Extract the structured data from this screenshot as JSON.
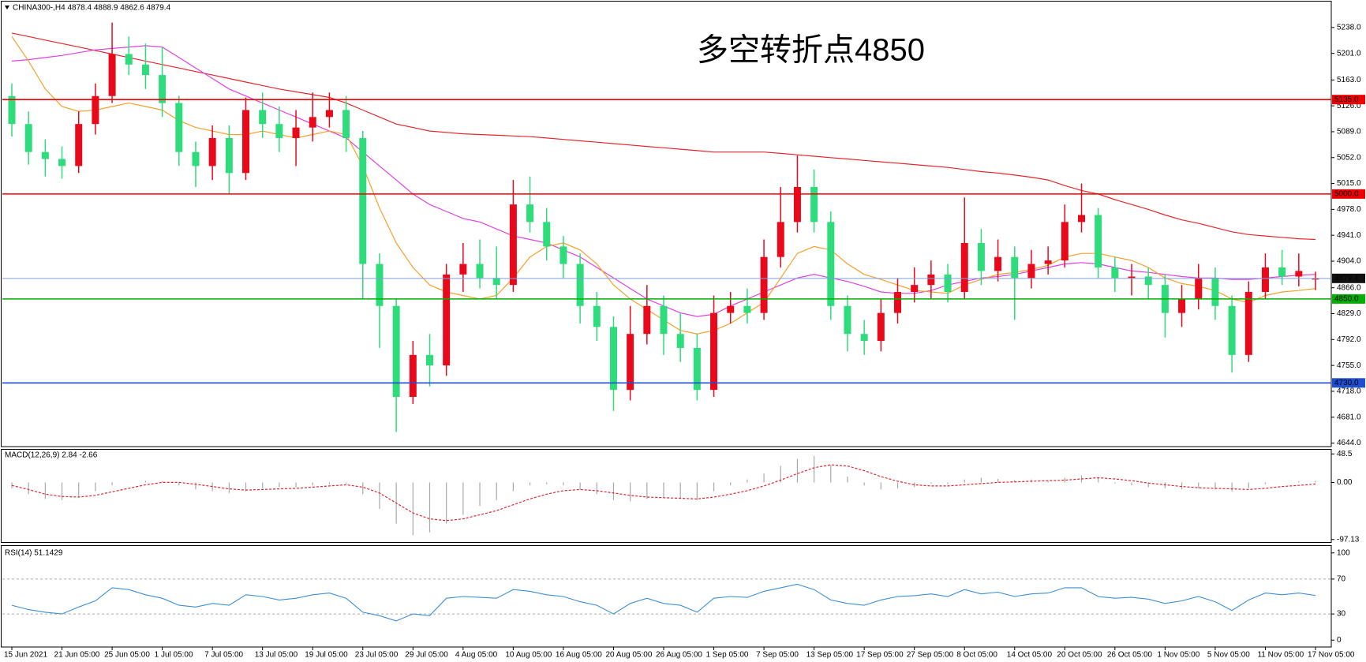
{
  "chart_data": {
    "type": "candlestick",
    "header": "CHINA300-,H4  4878.4 4888.9 4862.6 4879.4",
    "annotation": "多空转折点4850",
    "annotation_color": "#e8222b",
    "up_color": "#e8091b",
    "down_color": "#2edc7c",
    "categories": [
      "15 Jun 2021",
      null,
      null,
      "21 Jun 05:00",
      null,
      null,
      "25 Jun 05:00",
      null,
      null,
      "1 Jul 05:00",
      null,
      null,
      "7 Jul 05:00",
      null,
      null,
      "13 Jul 05:00",
      null,
      null,
      "19 Jul 05:00",
      null,
      null,
      "23 Jul 05:00",
      null,
      null,
      "29 Jul 05:00",
      null,
      null,
      "4 Aug 05:00",
      null,
      null,
      "10 Aug 05:00",
      null,
      null,
      "16 Aug 05:00",
      null,
      null,
      "20 Aug 05:00",
      null,
      null,
      "26 Aug 05:00",
      null,
      null,
      "1 Sep 05:00",
      null,
      null,
      "7 Sep 05:00",
      null,
      null,
      "13 Sep 05:00",
      null,
      null,
      "17 Sep 05:00",
      null,
      null,
      "27 Sep 05:00",
      null,
      null,
      "8 Oct 05:00",
      null,
      null,
      "14 Oct 05:00",
      null,
      null,
      "20 Oct 05:00",
      null,
      null,
      "26 Oct 05:00",
      null,
      null,
      "1 Nov 05:00",
      null,
      null,
      "5 Nov 05:00",
      null,
      null,
      "11 Nov 05:00",
      null,
      null,
      "17 Nov 05:00"
    ],
    "open": [
      5140,
      5100,
      5060,
      5050,
      5040,
      5100,
      5140,
      5200,
      5185,
      5170,
      5130,
      5060,
      5040,
      5080,
      5030,
      5120,
      5100,
      5080,
      5095,
      5110,
      5120,
      5080,
      4900,
      4840,
      4710,
      4770,
      4755,
      4885,
      4900,
      4880,
      4870,
      4985,
      4960,
      4925,
      4900,
      4840,
      4810,
      4720,
      4800,
      4840,
      4800,
      4780,
      4720,
      4830,
      4840,
      4830,
      4910,
      4960,
      5010,
      4960,
      4840,
      4800,
      4790,
      4830,
      4860,
      4870,
      4885,
      4860,
      4930,
      4890,
      4910,
      4880,
      4900,
      4905,
      4960,
      4970,
      4895,
      4880,
      4882,
      4870,
      4830,
      4850,
      4880,
      4840,
      4770,
      4860,
      4895,
      4882,
      4878.4
    ],
    "high": [
      5158,
      5118,
      5078,
      5068,
      5118,
      5158,
      5245,
      5225,
      5215,
      5210,
      5140,
      5075,
      5098,
      5098,
      5138,
      5145,
      5125,
      5120,
      5145,
      5145,
      5140,
      5090,
      4915,
      4850,
      4790,
      4800,
      4900,
      4930,
      4935,
      4925,
      5020,
      5025,
      4980,
      4940,
      4915,
      4860,
      4825,
      4840,
      4870,
      4855,
      4830,
      4800,
      4855,
      4860,
      4865,
      4935,
      5010,
      5055,
      5035,
      4975,
      4855,
      4820,
      4850,
      4880,
      4895,
      4905,
      4900,
      4995,
      4950,
      4935,
      4925,
      4920,
      4925,
      4985,
      5015,
      4980,
      4910,
      4900,
      4895,
      4885,
      4870,
      4900,
      4895,
      4855,
      4875,
      4915,
      4920,
      4915,
      4888.9
    ],
    "low": [
      5082,
      5042,
      5025,
      5022,
      5030,
      5085,
      5130,
      5170,
      5150,
      5110,
      5040,
      5010,
      5020,
      5000,
      5020,
      5080,
      5060,
      5040,
      5075,
      5095,
      5060,
      4850,
      4780,
      4660,
      4700,
      4725,
      4740,
      4860,
      4865,
      4850,
      4860,
      4945,
      4905,
      4880,
      4815,
      4790,
      4690,
      4705,
      4785,
      4770,
      4760,
      4705,
      4710,
      4815,
      4815,
      4820,
      4895,
      4945,
      4945,
      4820,
      4775,
      4770,
      4775,
      4815,
      4845,
      4850,
      4845,
      4850,
      4870,
      4875,
      4820,
      4865,
      4885,
      4895,
      4945,
      4880,
      4860,
      4855,
      4850,
      4795,
      4810,
      4835,
      4820,
      4745,
      4760,
      4850,
      4870,
      4868,
      4862.6
    ],
    "close": [
      5100,
      5060,
      5050,
      5040,
      5100,
      5140,
      5200,
      5185,
      5170,
      5130,
      5060,
      5040,
      5080,
      5030,
      5120,
      5100,
      5080,
      5095,
      5110,
      5120,
      5080,
      4900,
      4840,
      4710,
      4770,
      4755,
      4885,
      4900,
      4880,
      4870,
      4985,
      4960,
      4925,
      4900,
      4840,
      4810,
      4720,
      4800,
      4840,
      4800,
      4780,
      4720,
      4830,
      4840,
      4830,
      4910,
      4960,
      5010,
      4960,
      4840,
      4800,
      4790,
      4830,
      4860,
      4870,
      4885,
      4860,
      4930,
      4890,
      4910,
      4880,
      4900,
      4905,
      4960,
      4970,
      4895,
      4880,
      4882,
      4870,
      4830,
      4850,
      4880,
      4840,
      4770,
      4860,
      4895,
      4882,
      4890,
      4879.4
    ],
    "overlays": [
      {
        "color": "#e8262b",
        "values": [
          5230,
          5225,
          5220,
          5215,
          5210,
          5205,
          5200,
          5195,
          5190,
          5185,
          5180,
          5175,
          5170,
          5165,
          5160,
          5155,
          5150,
          5146,
          5142,
          5138,
          5130,
          5120,
          5110,
          5100,
          5095,
          5090,
          5088,
          5086,
          5085,
          5084,
          5083,
          5082,
          5080,
          5078,
          5076,
          5074,
          5072,
          5070,
          5068,
          5066,
          5064,
          5062,
          5060,
          5060,
          5060,
          5060,
          5058,
          5056,
          5054,
          5052,
          5050,
          5048,
          5046,
          5044,
          5042,
          5040,
          5038,
          5035,
          5032,
          5030,
          5027,
          5024,
          5020,
          5012,
          5005,
          5000,
          4992,
          4985,
          4978,
          4970,
          4963,
          4958,
          4952,
          4946,
          4942,
          4940,
          4938,
          4936,
          4935
        ]
      },
      {
        "color": "#e040e0",
        "values": [
          5190,
          5192,
          5195,
          5198,
          5202,
          5206,
          5208,
          5210,
          5212,
          5210,
          5195,
          5180,
          5165,
          5150,
          5140,
          5130,
          5120,
          5110,
          5100,
          5090,
          5080,
          5060,
          5040,
          5020,
          5000,
          4985,
          4975,
          4965,
          4960,
          4950,
          4940,
          4935,
          4930,
          4920,
          4910,
          4895,
          4880,
          4865,
          4850,
          4840,
          4830,
          4825,
          4828,
          4840,
          4850,
          4860,
          4870,
          4880,
          4885,
          4880,
          4875,
          4868,
          4860,
          4858,
          4858,
          4862,
          4870,
          4875,
          4880,
          4882,
          4885,
          4890,
          4895,
          4900,
          4902,
          4900,
          4895,
          4890,
          4888,
          4885,
          4882,
          4880,
          4880,
          4878,
          4878,
          4880,
          4882,
          4884,
          4885
        ]
      },
      {
        "color": "#f5a02a",
        "values": [
          5225,
          5190,
          5150,
          5125,
          5118,
          5120,
          5125,
          5130,
          5125,
          5120,
          5105,
          5095,
          5090,
          5085,
          5085,
          5090,
          5085,
          5080,
          5085,
          5090,
          5085,
          5040,
          4980,
          4930,
          4895,
          4870,
          4860,
          4855,
          4850,
          4855,
          4880,
          4910,
          4925,
          4930,
          4920,
          4900,
          4870,
          4850,
          4835,
          4820,
          4805,
          4800,
          4805,
          4815,
          4830,
          4845,
          4880,
          4915,
          4925,
          4920,
          4900,
          4885,
          4878,
          4870,
          4862,
          4860,
          4858,
          4870,
          4878,
          4885,
          4888,
          4892,
          4898,
          4910,
          4915,
          4915,
          4910,
          4905,
          4895,
          4880,
          4872,
          4868,
          4862,
          4850,
          4845,
          4855,
          4860,
          4862,
          4865
        ]
      }
    ],
    "ylim": [
      4639,
      5275
    ],
    "yticks": [
      {
        "value": 5238,
        "label": "5238.0"
      },
      {
        "value": 5201,
        "label": "5201.0"
      },
      {
        "value": 5163,
        "label": "5163.0"
      },
      {
        "value": 5126,
        "label": "5126.0"
      },
      {
        "value": 5089,
        "label": "5089.0"
      },
      {
        "value": 5052,
        "label": "5052.0"
      },
      {
        "value": 5015,
        "label": "5015.0"
      },
      {
        "value": 4978,
        "label": "4978.0"
      },
      {
        "value": 4941,
        "label": "4941.0"
      },
      {
        "value": 4904,
        "label": "4904.0"
      },
      {
        "value": 4866,
        "label": "4866.0"
      },
      {
        "value": 4829,
        "label": "4829.0"
      },
      {
        "value": 4792,
        "label": "4792.0"
      },
      {
        "value": 4755,
        "label": "4755.0"
      },
      {
        "value": 4718,
        "label": "4718.0"
      },
      {
        "value": 4681,
        "label": "4681.0"
      },
      {
        "value": 4644,
        "label": "4644.0"
      }
    ],
    "levels": [
      {
        "value": 5135,
        "label": "5135.0",
        "color": "#f00000"
      },
      {
        "value": 5000,
        "label": "5000.0",
        "color": "#f00000"
      },
      {
        "value": 4850,
        "label": "4850.0",
        "color": "#00b000"
      },
      {
        "value": 4730,
        "label": "4730.0",
        "color": "#1f4fd0"
      }
    ],
    "current_price": 4879.4,
    "current_price_color": "#7d9fd8",
    "panels": [
      {
        "type": "macd",
        "label": "MACD(12,26,9) 2.84 -2.66",
        "ylim": [
          -101.5,
          54.3
        ],
        "yticks": [
          48.5,
          {
            "value": 0,
            "label": "0.00"
          },
          -97.13
        ],
        "histogram_color": "#a8a8a8",
        "signal_color": "#e0262b",
        "histogram": [
          -10,
          -20,
          -28,
          -30,
          -25,
          -15,
          -5,
          0,
          3,
          2,
          -5,
          -12,
          -15,
          -18,
          -15,
          -10,
          -8,
          -8,
          -5,
          -3,
          -2,
          -20,
          -45,
          -70,
          -90,
          -85,
          -70,
          -55,
          -40,
          -30,
          -15,
          -5,
          -3,
          -5,
          -12,
          -20,
          -30,
          -32,
          -28,
          -25,
          -28,
          -30,
          -15,
          -5,
          5,
          15,
          28,
          40,
          45,
          30,
          10,
          -5,
          -12,
          -10,
          -8,
          -2,
          -3,
          5,
          8,
          6,
          4,
          5,
          3,
          8,
          12,
          8,
          -2,
          -5,
          -8,
          -10,
          -12,
          -10,
          -12,
          -15,
          -10,
          -3,
          0,
          2,
          2.84
        ],
        "signal": [
          -5,
          -12,
          -20,
          -24,
          -25,
          -22,
          -16,
          -10,
          -4,
          0,
          0,
          -3,
          -7,
          -11,
          -13,
          -12,
          -11,
          -10,
          -8,
          -6,
          -4,
          -8,
          -18,
          -35,
          -52,
          -62,
          -65,
          -62,
          -55,
          -48,
          -38,
          -28,
          -20,
          -14,
          -12,
          -14,
          -18,
          -22,
          -25,
          -26,
          -27,
          -28,
          -25,
          -20,
          -14,
          -6,
          4,
          15,
          25,
          30,
          28,
          20,
          10,
          2,
          -4,
          -6,
          -6,
          -4,
          -2,
          0,
          1,
          2,
          3,
          4,
          6,
          8,
          6,
          3,
          -1,
          -4,
          -7,
          -9,
          -10,
          -11,
          -12,
          -10,
          -7,
          -5,
          -2.66
        ]
      },
      {
        "type": "rsi",
        "label": "RSI(14) 51.1429",
        "ylim": [
          -7,
          107
        ],
        "yticks": [
          100,
          70,
          30,
          0
        ],
        "dashed_levels": [
          70,
          30
        ],
        "color": "#3c8fd8",
        "values": [
          40,
          35,
          32,
          30,
          38,
          45,
          60,
          58,
          52,
          48,
          40,
          38,
          42,
          40,
          52,
          50,
          46,
          48,
          52,
          54,
          48,
          32,
          28,
          22,
          30,
          28,
          48,
          50,
          49,
          48,
          58,
          56,
          52,
          50,
          44,
          40,
          30,
          42,
          48,
          42,
          40,
          32,
          48,
          50,
          49,
          56,
          60,
          64,
          58,
          46,
          42,
          40,
          46,
          50,
          51,
          53,
          50,
          58,
          53,
          55,
          50,
          53,
          54,
          60,
          60,
          50,
          48,
          49,
          47,
          42,
          45,
          50,
          44,
          34,
          46,
          54,
          52,
          54,
          51.1429
        ]
      }
    ]
  }
}
